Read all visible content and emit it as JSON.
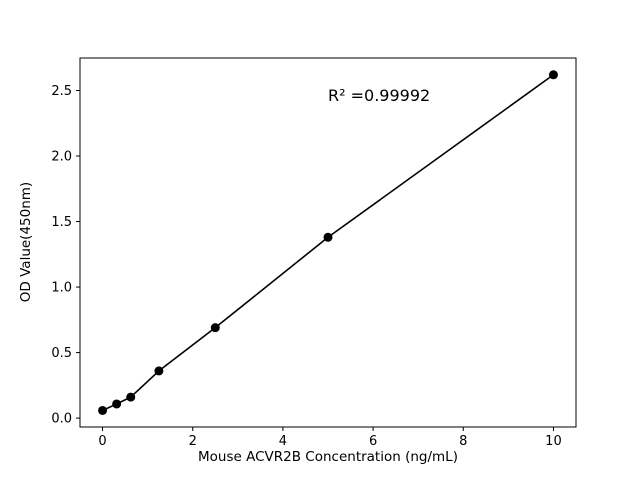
{
  "chart_data": {
    "type": "scatter",
    "title": "",
    "xlabel": "Mouse ACVR2B Concentration (ng/mL)",
    "ylabel": "OD Value(450nm)",
    "x": [
      0,
      0.3125,
      0.625,
      1.25,
      2.5,
      5,
      10
    ],
    "y": [
      0.058,
      0.108,
      0.16,
      0.36,
      0.69,
      1.38,
      2.62
    ],
    "line_through_points": true,
    "annotation": {
      "text": "R² =0.99992",
      "x": 5.0,
      "y": 2.42
    },
    "xlim": [
      -0.5,
      10.5
    ],
    "ylim": [
      -0.068,
      2.748
    ],
    "xticks": {
      "values": [
        0,
        2,
        4,
        6,
        8,
        10
      ],
      "labels": [
        "0",
        "2",
        "4",
        "6",
        "8",
        "10"
      ]
    },
    "yticks": {
      "values": [
        0,
        0.5,
        1.0,
        1.5,
        2.0,
        2.5
      ],
      "labels": [
        "0.0",
        "0.5",
        "1.0",
        "1.5",
        "2.0",
        "2.5"
      ]
    },
    "grid": false,
    "legend": null,
    "marker_color": "#000000",
    "line_color": "#000000",
    "background": "#ffffff"
  }
}
